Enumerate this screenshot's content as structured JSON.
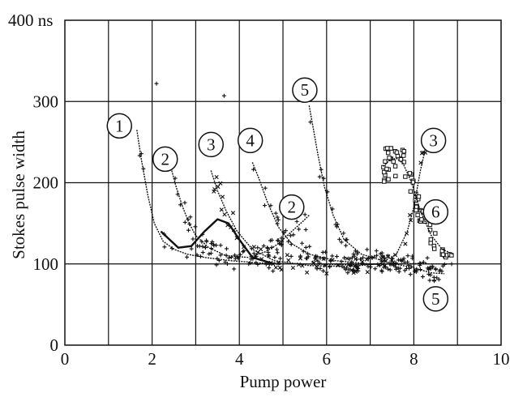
{
  "chart_data": {
    "type": "scatter",
    "xlabel": "Pump power",
    "ylabel": "Stokes pulse width",
    "xlim": [
      0,
      10
    ],
    "ylim": [
      0,
      400
    ],
    "x_ticks": [
      "0",
      "2",
      "4",
      "6",
      "8",
      "10"
    ],
    "y_ticks": [
      "0",
      "100",
      "200",
      "300",
      "400 ns"
    ],
    "x_tick_values": [
      0,
      2,
      4,
      6,
      8,
      10
    ],
    "y_tick_values": [
      0,
      100,
      200,
      300,
      400
    ],
    "grid": true,
    "grid_x_step": 1,
    "grid_y_step": 100,
    "series": [
      {
        "label": "1",
        "marker": "plus",
        "color": "#1a1a1a",
        "curve": [
          [
            1.65,
            265
          ],
          [
            1.75,
            230
          ],
          [
            1.9,
            185
          ],
          [
            2.05,
            150
          ],
          [
            2.25,
            128
          ],
          [
            2.5,
            118
          ],
          [
            2.8,
            112
          ],
          [
            3.2,
            108
          ],
          [
            3.8,
            104
          ],
          [
            4.5,
            101
          ],
          [
            5.5,
            100
          ],
          [
            6.5,
            99
          ],
          [
            7.5,
            100
          ],
          [
            8.3,
            100
          ],
          [
            8.9,
            100
          ]
        ]
      },
      {
        "label": "2",
        "marker": "plus",
        "color": "#1a1a1a",
        "curve": [
          [
            2.45,
            215
          ],
          [
            2.55,
            195
          ],
          [
            2.7,
            170
          ],
          [
            2.85,
            150
          ],
          [
            3.0,
            135
          ],
          [
            3.3,
            120
          ],
          [
            3.7,
            110
          ],
          [
            4.2,
            108
          ],
          [
            4.6,
            115
          ],
          [
            4.9,
            125
          ],
          [
            5.2,
            140
          ],
          [
            5.45,
            152
          ],
          [
            5.6,
            160
          ]
        ]
      },
      {
        "label": "3",
        "marker": "cross",
        "color": "#1a1a1a",
        "curve": [
          [
            3.35,
            215
          ],
          [
            3.5,
            190
          ],
          [
            3.7,
            165
          ],
          [
            3.95,
            140
          ],
          [
            4.3,
            118
          ],
          [
            4.8,
            104
          ],
          [
            5.6,
            98
          ],
          [
            6.5,
            97
          ],
          [
            7.2,
            100
          ],
          [
            7.6,
            112
          ],
          [
            7.85,
            140
          ],
          [
            8.0,
            170
          ],
          [
            8.15,
            215
          ],
          [
            8.3,
            250
          ]
        ]
      },
      {
        "label": "4",
        "marker": "plus",
        "color": "#1a1a1a",
        "curve": [
          [
            4.3,
            225
          ],
          [
            4.45,
            205
          ],
          [
            4.65,
            175
          ],
          [
            4.9,
            145
          ],
          [
            5.2,
            125
          ],
          [
            5.6,
            112
          ],
          [
            6.2,
            104
          ],
          [
            7.0,
            100
          ],
          [
            7.8,
            100
          ],
          [
            8.3,
            101
          ]
        ]
      },
      {
        "label": "5",
        "marker": "plus",
        "color": "#1a1a1a",
        "curve": [
          [
            5.6,
            295
          ],
          [
            5.7,
            265
          ],
          [
            5.8,
            235
          ],
          [
            5.95,
            195
          ],
          [
            6.15,
            160
          ],
          [
            6.4,
            130
          ],
          [
            6.8,
            112
          ],
          [
            7.4,
            102
          ],
          [
            8.0,
            95
          ],
          [
            8.4,
            89
          ],
          [
            8.7,
            88
          ]
        ]
      },
      {
        "label": "6",
        "marker": "square",
        "color": "#1a1a1a",
        "curve": [
          [
            7.3,
            220
          ],
          [
            7.45,
            228
          ],
          [
            7.6,
            230
          ],
          [
            7.75,
            224
          ],
          [
            7.95,
            200
          ],
          [
            8.15,
            165
          ],
          [
            8.4,
            135
          ],
          [
            8.65,
            118
          ],
          [
            8.9,
            112
          ]
        ]
      }
    ],
    "hump_curve": [
      [
        2.2,
        140
      ],
      [
        2.6,
        120
      ],
      [
        2.9,
        122
      ],
      [
        3.2,
        140
      ],
      [
        3.5,
        155
      ],
      [
        3.75,
        150
      ],
      [
        4.0,
        130
      ],
      [
        4.3,
        108
      ],
      [
        4.8,
        100
      ]
    ],
    "outliers": [
      [
        2.1,
        322
      ],
      [
        3.65,
        307
      ]
    ],
    "annotations": [
      {
        "text": "1",
        "x": 1.25,
        "y": 270
      },
      {
        "text": "2",
        "x": 2.3,
        "y": 229
      },
      {
        "text": "3",
        "x": 3.35,
        "y": 247
      },
      {
        "text": "4",
        "x": 4.25,
        "y": 252
      },
      {
        "text": "5",
        "x": 5.5,
        "y": 314
      },
      {
        "text": "2",
        "x": 5.2,
        "y": 170
      },
      {
        "text": "3",
        "x": 8.45,
        "y": 252
      },
      {
        "text": "6",
        "x": 8.5,
        "y": 164
      },
      {
        "text": "5",
        "x": 8.5,
        "y": 57
      }
    ]
  }
}
